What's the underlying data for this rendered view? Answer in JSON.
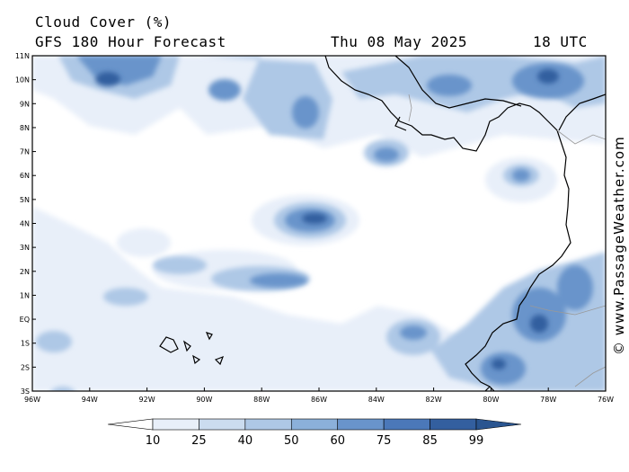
{
  "header": {
    "title": "Cloud Cover (%)",
    "subtitle": "GFS 180 Hour Forecast",
    "date": "Thu 08 May 2025",
    "time": "18 UTC"
  },
  "credit": "© www.PassageWeather.com",
  "axes": {
    "lat_labels": [
      "11N",
      "10N",
      "9N",
      "8N",
      "7N",
      "6N",
      "5N",
      "4N",
      "3N",
      "2N",
      "1N",
      "EQ",
      "1S",
      "2S",
      "3S"
    ],
    "lon_labels": [
      "96W",
      "94W",
      "92W",
      "90W",
      "88W",
      "86W",
      "84W",
      "82W",
      "80W",
      "78W",
      "76W"
    ]
  },
  "colorbar": {
    "labels": [
      "10",
      "25",
      "40",
      "50",
      "60",
      "75",
      "85",
      "99"
    ],
    "colors": [
      "#ffffff",
      "#e8eff9",
      "#cbdcef",
      "#aec8e6",
      "#8bb0da",
      "#6994cb",
      "#4b78b9",
      "#335f9f",
      "#2a5590"
    ]
  },
  "cloud_levels": [
    "#e8eff9",
    "#cbdcef",
    "#aec8e6",
    "#8bb0da",
    "#6994cb",
    "#4b78b9",
    "#335f9f"
  ],
  "colors": {
    "land_outline": "#000000",
    "border": "#999999",
    "frame": "#000000"
  }
}
